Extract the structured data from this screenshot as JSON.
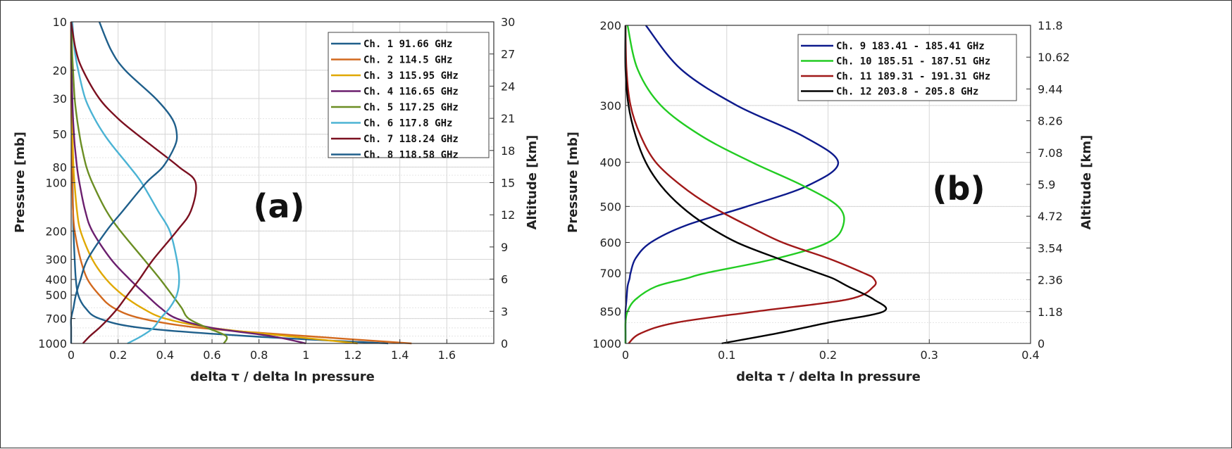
{
  "chart_data": [
    {
      "type": "line",
      "panel_label": "(a)",
      "xlabel": "delta τ / delta ln pressure",
      "ylabel": "Pressure [mb]",
      "y2label": "Altitude [km]",
      "xlim": [
        0,
        1.8
      ],
      "xticks": [
        "0",
        "0.2",
        "0.4",
        "0.6",
        "0.8",
        "1",
        "1.2",
        "1.4",
        "1.6"
      ],
      "ylim": [
        1000,
        10
      ],
      "yscale": "log",
      "yticks": [
        "10",
        "20",
        "30",
        "50",
        "80",
        "100",
        "200",
        "300",
        "400",
        "500",
        "700",
        "1000"
      ],
      "y2lim": [
        0,
        30
      ],
      "y2ticks": [
        "0",
        "3",
        "6",
        "9",
        "12",
        "15",
        "18",
        "21",
        "24",
        "27",
        "30"
      ],
      "grid": true,
      "legend_position": "top-right",
      "y_values_mb": [
        1000,
        900,
        800,
        700,
        600,
        500,
        400,
        300,
        200,
        150,
        100,
        80,
        60,
        50,
        40,
        30,
        20,
        15,
        10
      ],
      "series": [
        {
          "name": "Ch. 1 91.66 GHz",
          "color": "#1f5f8b",
          "values": [
            1.35,
            0.75,
            0.3,
            0.12,
            0.06,
            0.03,
            0.02,
            0.015,
            0.01,
            0.008,
            0.006,
            0.005,
            0.004,
            0.003,
            0.002,
            0.001,
            0.0,
            0.0,
            0.0
          ]
        },
        {
          "name": "Ch. 2 114.5 GHz",
          "color": "#d2691e",
          "values": [
            1.45,
            1.0,
            0.55,
            0.3,
            0.18,
            0.12,
            0.07,
            0.04,
            0.015,
            0.008,
            0.005,
            0.004,
            0.003,
            0.002,
            0.001,
            0.0,
            0.0,
            0.0,
            0.0
          ]
        },
        {
          "name": "Ch. 3 115.95 GHz",
          "color": "#e0a800",
          "values": [
            1.22,
            0.92,
            0.6,
            0.4,
            0.3,
            0.22,
            0.15,
            0.09,
            0.04,
            0.025,
            0.014,
            0.01,
            0.007,
            0.005,
            0.003,
            0.002,
            0.001,
            0.0,
            0.0
          ]
        },
        {
          "name": "Ch. 4 116.65 GHz",
          "color": "#6b1f6e",
          "values": [
            1.0,
            0.85,
            0.6,
            0.45,
            0.38,
            0.32,
            0.25,
            0.17,
            0.09,
            0.06,
            0.035,
            0.025,
            0.016,
            0.012,
            0.008,
            0.005,
            0.002,
            0.001,
            0.0
          ]
        },
        {
          "name": "Ch. 5 117.25 GHz",
          "color": "#6b8e23",
          "values": [
            0.65,
            0.66,
            0.58,
            0.5,
            0.47,
            0.43,
            0.38,
            0.31,
            0.21,
            0.15,
            0.09,
            0.065,
            0.045,
            0.035,
            0.025,
            0.015,
            0.008,
            0.004,
            0.002
          ]
        },
        {
          "name": "Ch. 6 117.8 GHz",
          "color": "#4bb3d4",
          "values": [
            0.24,
            0.3,
            0.35,
            0.38,
            0.42,
            0.45,
            0.46,
            0.45,
            0.42,
            0.37,
            0.3,
            0.25,
            0.18,
            0.14,
            0.1,
            0.06,
            0.03,
            0.015,
            0.005
          ]
        },
        {
          "name": "Ch. 7 118.24 GHz",
          "color": "#7b1020",
          "values": [
            0.05,
            0.08,
            0.12,
            0.16,
            0.2,
            0.24,
            0.29,
            0.35,
            0.45,
            0.51,
            0.53,
            0.46,
            0.35,
            0.28,
            0.2,
            0.12,
            0.05,
            0.02,
            0.0
          ]
        },
        {
          "name": "Ch. 8 118.58 GHz",
          "color": "#1f5f8b",
          "values": [
            0.0,
            0.0,
            0.0,
            0.0,
            0.01,
            0.02,
            0.04,
            0.07,
            0.15,
            0.22,
            0.32,
            0.39,
            0.44,
            0.45,
            0.43,
            0.36,
            0.23,
            0.17,
            0.12
          ]
        }
      ]
    },
    {
      "type": "line",
      "panel_label": "(b)",
      "xlabel": "delta τ / delta ln pressure",
      "ylabel": "Pressure [mb]",
      "y2label": "Altitude [km]",
      "xlim": [
        0,
        0.4
      ],
      "xticks": [
        "0",
        "0.1",
        "0.2",
        "0.3",
        "0.4"
      ],
      "ylim": [
        1000,
        200
      ],
      "yscale": "log",
      "yticks": [
        "200",
        "300",
        "400",
        "500",
        "600",
        "700",
        "850",
        "1000"
      ],
      "y2lim": [
        0,
        11.8
      ],
      "y2ticks": [
        "0",
        "1.18",
        "2.36",
        "3.54",
        "4.72",
        "5.9",
        "7.08",
        "8.26",
        "9.44",
        "10.62",
        "11.8"
      ],
      "grid": true,
      "legend_position": "top-right",
      "y_values_mb": [
        1000,
        950,
        900,
        850,
        800,
        750,
        720,
        700,
        650,
        600,
        550,
        500,
        450,
        400,
        350,
        300,
        250,
        200
      ],
      "series": [
        {
          "name": "Ch. 9 183.41 - 185.41 GHz",
          "color": "#0d1a8c",
          "values": [
            0.0,
            0.0,
            0.0,
            0.0,
            0.001,
            0.002,
            0.004,
            0.005,
            0.01,
            0.025,
            0.06,
            0.12,
            0.18,
            0.21,
            0.175,
            0.11,
            0.055,
            0.02
          ]
        },
        {
          "name": "Ch. 10 185.51 - 187.51 GHz",
          "color": "#22cc22",
          "values": [
            0.0,
            0.0,
            0.0,
            0.002,
            0.01,
            0.03,
            0.06,
            0.08,
            0.15,
            0.2,
            0.215,
            0.21,
            0.175,
            0.125,
            0.075,
            0.035,
            0.012,
            0.002
          ]
        },
        {
          "name": "Ch. 11 189.31 - 191.31 GHz",
          "color": "#a01818",
          "values": [
            0.003,
            0.015,
            0.05,
            0.13,
            0.22,
            0.245,
            0.245,
            0.235,
            0.2,
            0.155,
            0.12,
            0.085,
            0.055,
            0.03,
            0.015,
            0.005,
            0.001,
            0.0
          ]
        },
        {
          "name": "Ch. 12 203.8 - 205.8 GHz",
          "color": "#000000",
          "values": [
            0.095,
            0.15,
            0.2,
            0.255,
            0.245,
            0.22,
            0.205,
            0.19,
            0.15,
            0.11,
            0.08,
            0.055,
            0.035,
            0.02,
            0.01,
            0.003,
            0.0,
            0.0
          ]
        }
      ]
    }
  ]
}
